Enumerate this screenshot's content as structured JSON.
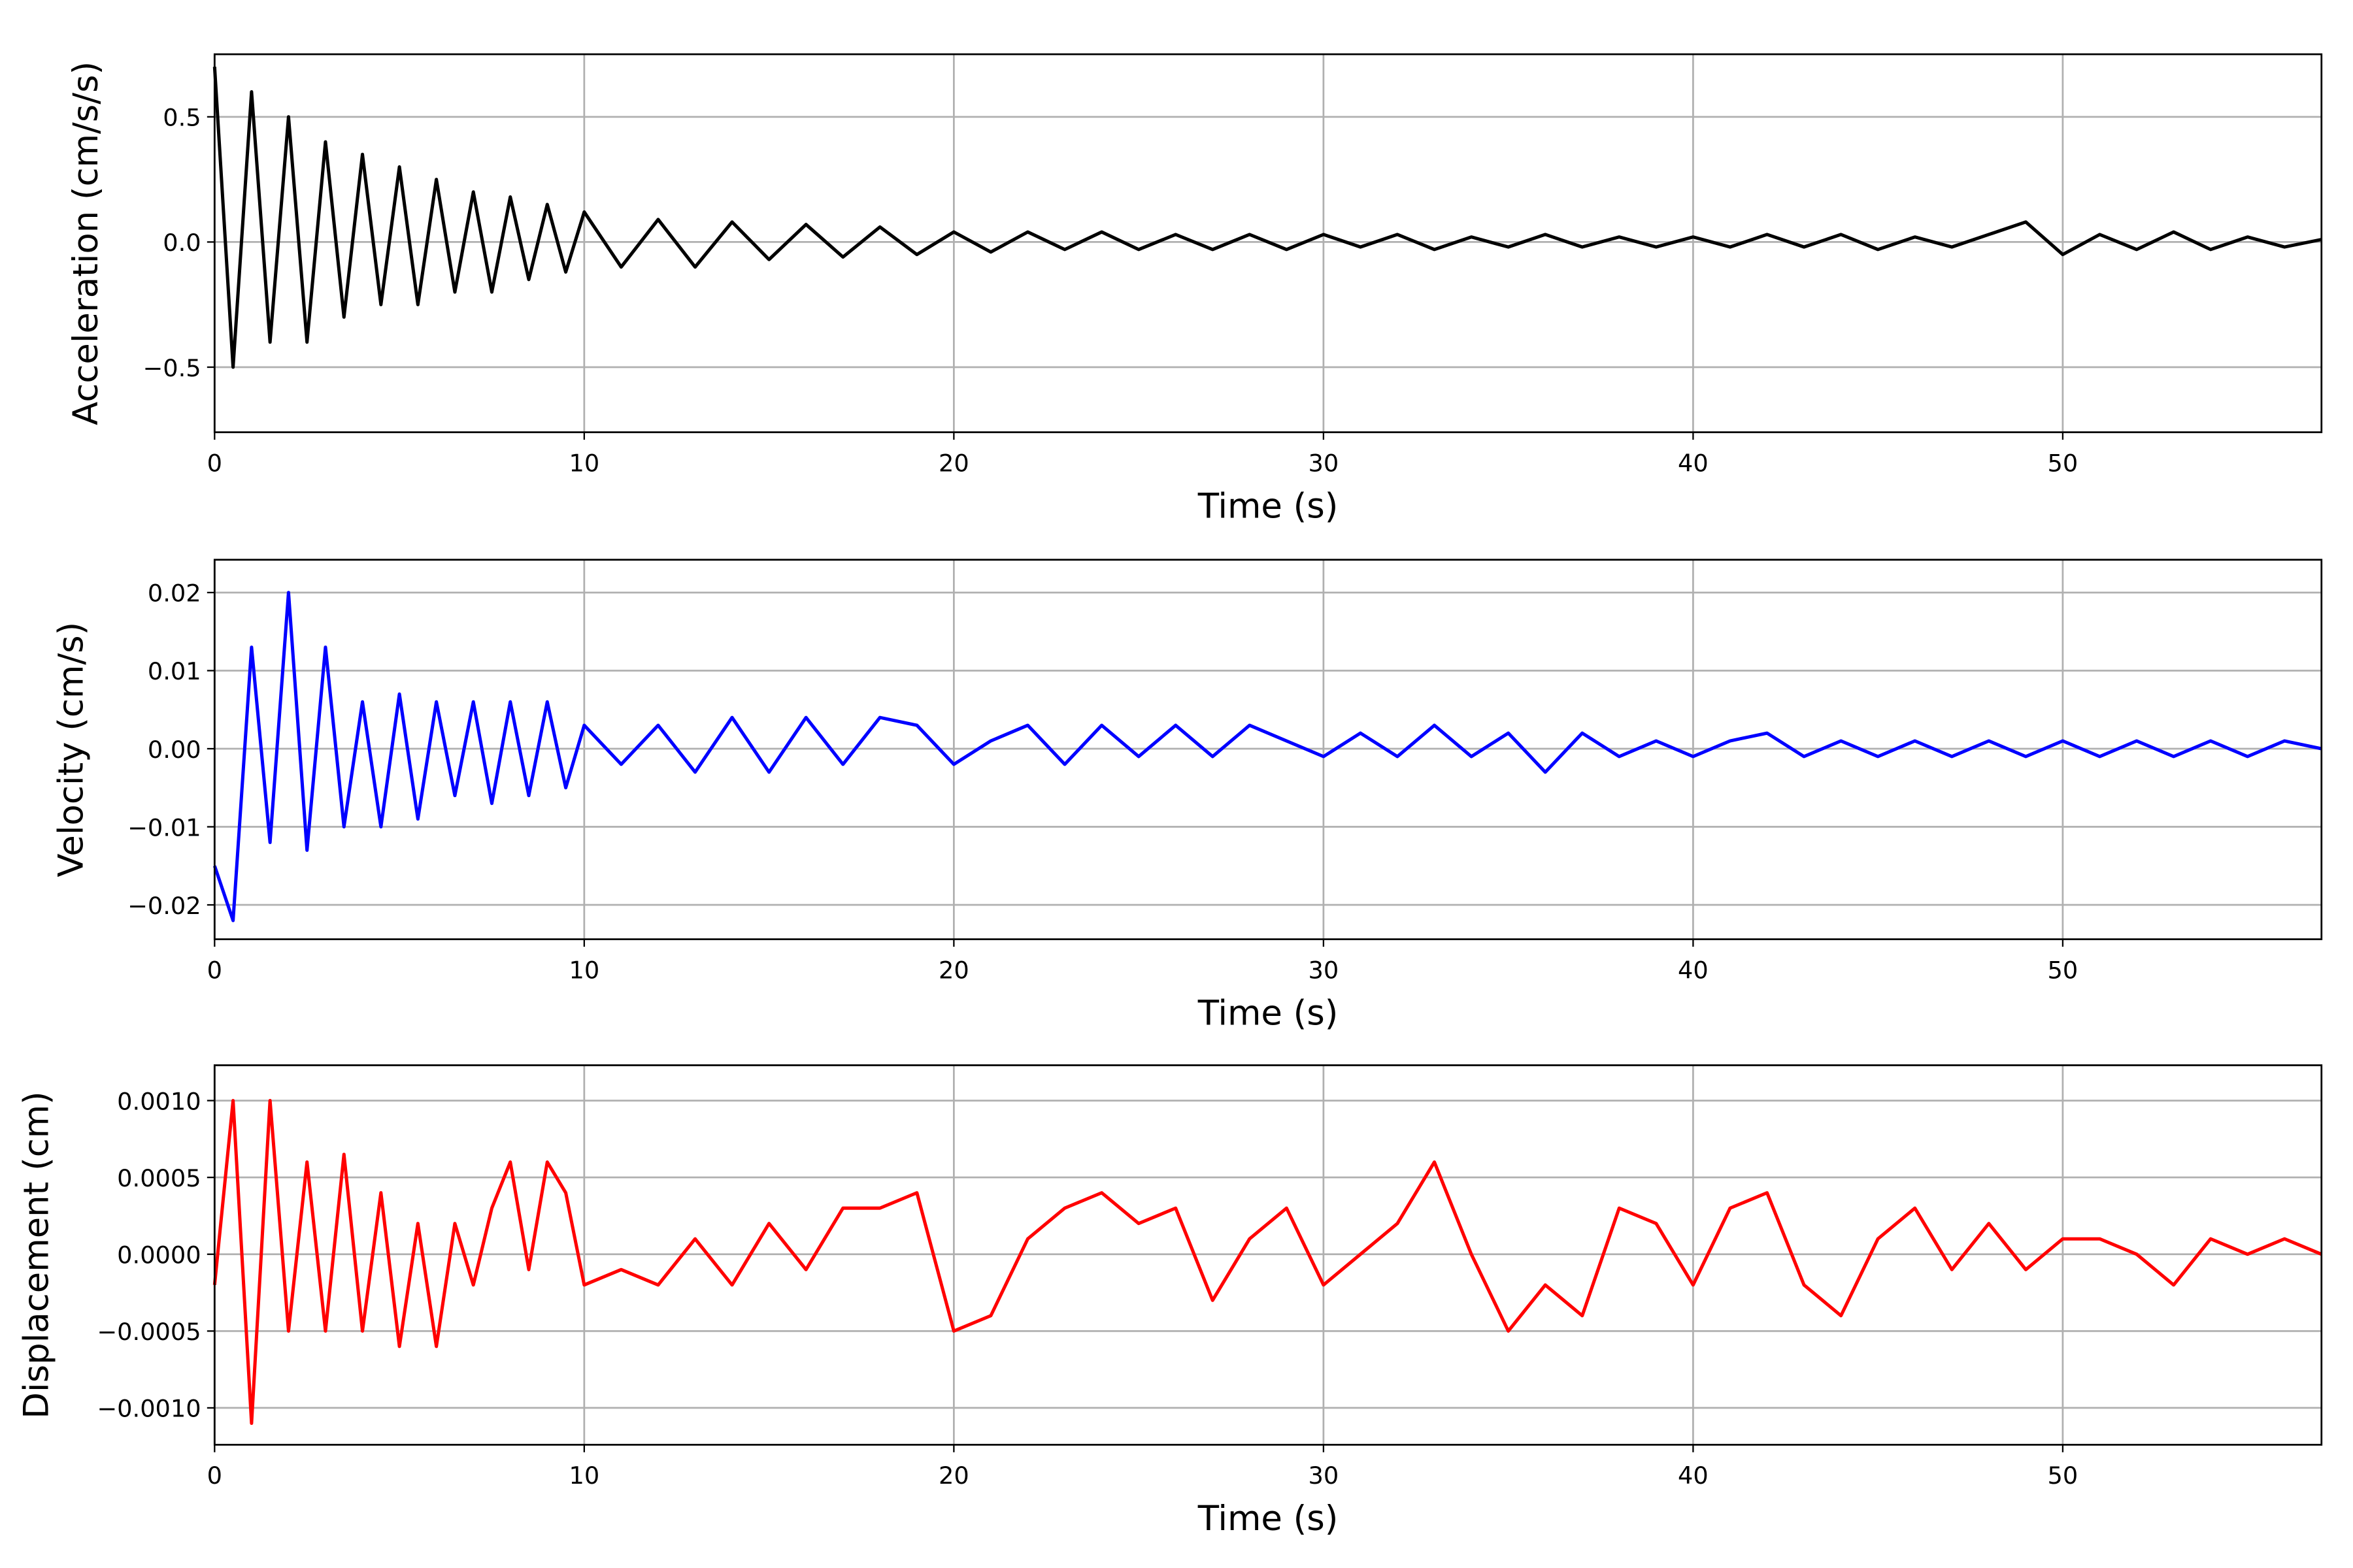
{
  "chart_data": [
    {
      "type": "line",
      "xlabel": "Time (s)",
      "ylabel": "Acceleration (cm/s/s)",
      "color": "#000000",
      "grid": true,
      "xlim": [
        0,
        57
      ],
      "xticks": [
        0,
        10,
        20,
        30,
        40,
        50
      ],
      "ylim": [
        -0.76,
        0.75
      ],
      "yticks": [
        {
          "value": -0.5,
          "label": "−0.5"
        },
        {
          "value": 0,
          "label": "0.0"
        },
        0.5
      ],
      "x": [
        0,
        0.5,
        1,
        1.5,
        2,
        2.5,
        3,
        3.5,
        4,
        4.5,
        5,
        5.5,
        6,
        6.5,
        7,
        7.5,
        8,
        8.5,
        9,
        9.5,
        10,
        11,
        12,
        13,
        14,
        15,
        16,
        17,
        18,
        19,
        20,
        21,
        22,
        23,
        24,
        25,
        26,
        27,
        28,
        29,
        30,
        31,
        32,
        33,
        34,
        35,
        36,
        37,
        38,
        39,
        40,
        41,
        42,
        43,
        44,
        45,
        46,
        47,
        48,
        49,
        50,
        51,
        52,
        53,
        54,
        55,
        56,
        57
      ],
      "values": [
        0.7,
        -0.5,
        0.6,
        -0.4,
        0.5,
        -0.4,
        0.4,
        -0.3,
        0.35,
        -0.25,
        0.3,
        -0.25,
        0.25,
        -0.2,
        0.2,
        -0.2,
        0.18,
        -0.15,
        0.15,
        -0.12,
        0.12,
        -0.1,
        0.09,
        -0.1,
        0.08,
        -0.07,
        0.07,
        -0.06,
        0.06,
        -0.05,
        0.04,
        -0.04,
        0.04,
        -0.03,
        0.04,
        -0.03,
        0.03,
        -0.03,
        0.03,
        -0.03,
        0.03,
        -0.02,
        0.03,
        -0.03,
        0.02,
        -0.02,
        0.03,
        -0.02,
        0.02,
        -0.02,
        0.02,
        -0.02,
        0.03,
        -0.02,
        0.03,
        -0.03,
        0.02,
        -0.02,
        0.03,
        0.08,
        -0.05,
        0.03,
        -0.03,
        0.04,
        -0.03,
        0.02,
        -0.02,
        0.01
      ]
    },
    {
      "type": "line",
      "xlabel": "Time (s)",
      "ylabel": "Velocity (cm/s)",
      "color": "#0000ff",
      "grid": true,
      "xlim": [
        0,
        57
      ],
      "xticks": [
        0,
        10,
        20,
        30,
        40,
        50
      ],
      "ylim": [
        -0.0244,
        0.0242
      ],
      "yticks": [
        {
          "value": -0.02,
          "label": "−0.02"
        },
        {
          "value": -0.01,
          "label": "−0.01"
        },
        {
          "value": 0,
          "label": "0.00"
        },
        0.01,
        0.02
      ],
      "x": [
        0,
        0.5,
        1,
        1.5,
        2,
        2.5,
        3,
        3.5,
        4,
        4.5,
        5,
        5.5,
        6,
        6.5,
        7,
        7.5,
        8,
        8.5,
        9,
        9.5,
        10,
        11,
        12,
        13,
        14,
        15,
        16,
        17,
        18,
        19,
        20,
        21,
        22,
        23,
        24,
        25,
        26,
        27,
        28,
        29,
        30,
        31,
        32,
        33,
        34,
        35,
        36,
        37,
        38,
        39,
        40,
        41,
        42,
        43,
        44,
        45,
        46,
        47,
        48,
        49,
        50,
        51,
        52,
        53,
        54,
        55,
        56,
        57
      ],
      "values": [
        -0.015,
        -0.022,
        0.013,
        -0.012,
        0.02,
        -0.013,
        0.013,
        -0.01,
        0.006,
        -0.01,
        0.007,
        -0.009,
        0.006,
        -0.006,
        0.006,
        -0.007,
        0.006,
        -0.006,
        0.006,
        -0.005,
        0.003,
        -0.002,
        0.003,
        -0.003,
        0.004,
        -0.003,
        0.004,
        -0.002,
        0.004,
        0.003,
        -0.002,
        0.001,
        0.003,
        -0.002,
        0.003,
        -0.001,
        0.003,
        -0.001,
        0.003,
        0.001,
        -0.001,
        0.002,
        -0.001,
        0.003,
        -0.001,
        0.002,
        -0.003,
        0.002,
        -0.001,
        0.001,
        -0.001,
        0.001,
        0.002,
        -0.001,
        0.001,
        -0.001,
        0.001,
        -0.001,
        0.001,
        -0.001,
        0.001,
        -0.001,
        0.001,
        -0.001,
        0.001,
        -0.001,
        0.001,
        0
      ]
    },
    {
      "type": "line",
      "xlabel": "Time (s)",
      "ylabel": "Displacement (cm)",
      "color": "#ff0000",
      "grid": true,
      "xlim": [
        0,
        57
      ],
      "xticks": [
        0,
        10,
        20,
        30,
        40,
        50
      ],
      "ylim": [
        -0.00124,
        0.00123
      ],
      "yticks": [
        {
          "value": -0.001,
          "label": "−0.0010"
        },
        {
          "value": -0.0005,
          "label": "−0.0005"
        },
        {
          "value": 0,
          "label": "0.0000"
        },
        {
          "value": 0.0005,
          "label": "0.0005"
        },
        {
          "value": 0.001,
          "label": "0.0010"
        }
      ],
      "x": [
        0,
        0.5,
        1,
        1.5,
        2,
        2.5,
        3,
        3.5,
        4,
        4.5,
        5,
        5.5,
        6,
        6.5,
        7,
        7.5,
        8,
        8.5,
        9,
        9.5,
        10,
        11,
        12,
        13,
        14,
        15,
        16,
        17,
        18,
        19,
        20,
        21,
        22,
        23,
        24,
        25,
        26,
        27,
        28,
        29,
        30,
        31,
        32,
        33,
        34,
        35,
        36,
        37,
        38,
        39,
        40,
        41,
        42,
        43,
        44,
        45,
        46,
        47,
        48,
        49,
        50,
        51,
        52,
        53,
        54,
        55,
        56,
        57
      ],
      "values": [
        -0.0002,
        0.001,
        -0.0011,
        0.001,
        -0.0005,
        0.0006,
        -0.0005,
        0.00065,
        -0.0005,
        0.0004,
        -0.0006,
        0.0002,
        -0.0006,
        0.0002,
        -0.0002,
        0.0003,
        0.0006,
        -0.0001,
        0.0006,
        0.0004,
        -0.0002,
        -0.0001,
        -0.0002,
        0.0001,
        -0.0002,
        0.0002,
        -0.0001,
        0.0003,
        0.0003,
        0.0004,
        -0.0005,
        -0.0004,
        0.0001,
        0.0003,
        0.0004,
        0.0002,
        0.0003,
        -0.0003,
        0.0001,
        0.0003,
        -0.0002,
        0,
        0.0002,
        0.0006,
        0,
        -0.0005,
        -0.0002,
        -0.0004,
        0.0003,
        0.0002,
        -0.0002,
        0.0003,
        0.0004,
        -0.0002,
        -0.0004,
        0.0001,
        0.0003,
        -0.0001,
        0.0002,
        -0.0001,
        0.0001,
        0.0001,
        0,
        -0.0002,
        0.0001,
        0,
        0.0001,
        0
      ]
    }
  ]
}
